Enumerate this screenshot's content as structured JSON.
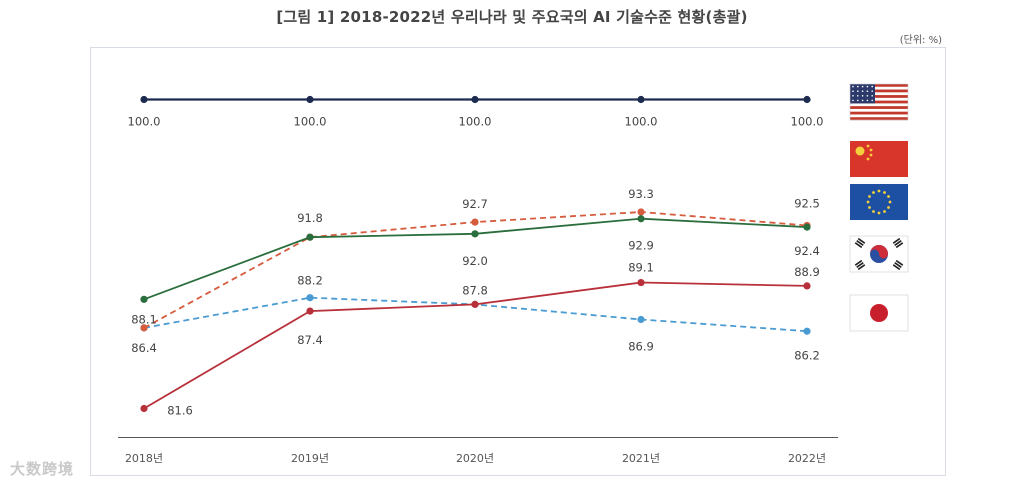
{
  "title": "[그림 1] 2018-2022년 우리나라 및 주요국의 AI 기술수준 현황(총괄)",
  "unit_label": "(단위: %)",
  "watermark": "大数跨境",
  "chart_data": {
    "type": "line",
    "title": "[그림 1] 2018-2022년 우리나라 및 주요국의 AI 기술수준 현황(총괄)",
    "xlabel": "",
    "ylabel": "",
    "unit": "%",
    "categories": [
      "2018년",
      "2019년",
      "2020년",
      "2021년",
      "2022년"
    ],
    "ylim": [
      80,
      102
    ],
    "grid": false,
    "legend": "flags at right",
    "series": [
      {
        "key": "us",
        "flag": "us-flag-icon",
        "color": "#1c2b4f",
        "dashed": false,
        "values": [
          100.0,
          100.0,
          100.0,
          100.0,
          100.0
        ],
        "labels": [
          "100.0",
          "100.0",
          "100.0",
          "100.0",
          "100.0"
        ]
      },
      {
        "key": "cn",
        "flag": "china-flag-icon",
        "color": "#d65c3e",
        "dashed": true,
        "values": [
          86.4,
          91.8,
          92.7,
          93.3,
          92.5
        ],
        "labels": [
          "",
          "",
          "92.7",
          "93.3",
          "92.5"
        ]
      },
      {
        "key": "eu",
        "flag": "eu-flag-icon",
        "color": "#2a6e3d",
        "dashed": false,
        "values": [
          88.1,
          91.8,
          92.0,
          92.9,
          92.4
        ],
        "labels": [
          "88.1",
          "91.8",
          "92.0",
          "92.9",
          "92.4"
        ]
      },
      {
        "key": "kr",
        "flag": "korea-flag-icon",
        "color": "#b8303a",
        "dashed": false,
        "values": [
          81.6,
          87.4,
          87.8,
          89.1,
          88.9
        ],
        "labels": [
          "81.6",
          "87.4",
          "87.8",
          "89.1",
          "88.9"
        ]
      },
      {
        "key": "jp",
        "flag": "japan-flag-icon",
        "color": "#4a9bd1",
        "dashed": true,
        "values": [
          86.4,
          88.2,
          87.8,
          86.9,
          86.2
        ],
        "labels": [
          "86.4",
          "88.2",
          "",
          "86.9",
          "86.2"
        ]
      }
    ]
  }
}
